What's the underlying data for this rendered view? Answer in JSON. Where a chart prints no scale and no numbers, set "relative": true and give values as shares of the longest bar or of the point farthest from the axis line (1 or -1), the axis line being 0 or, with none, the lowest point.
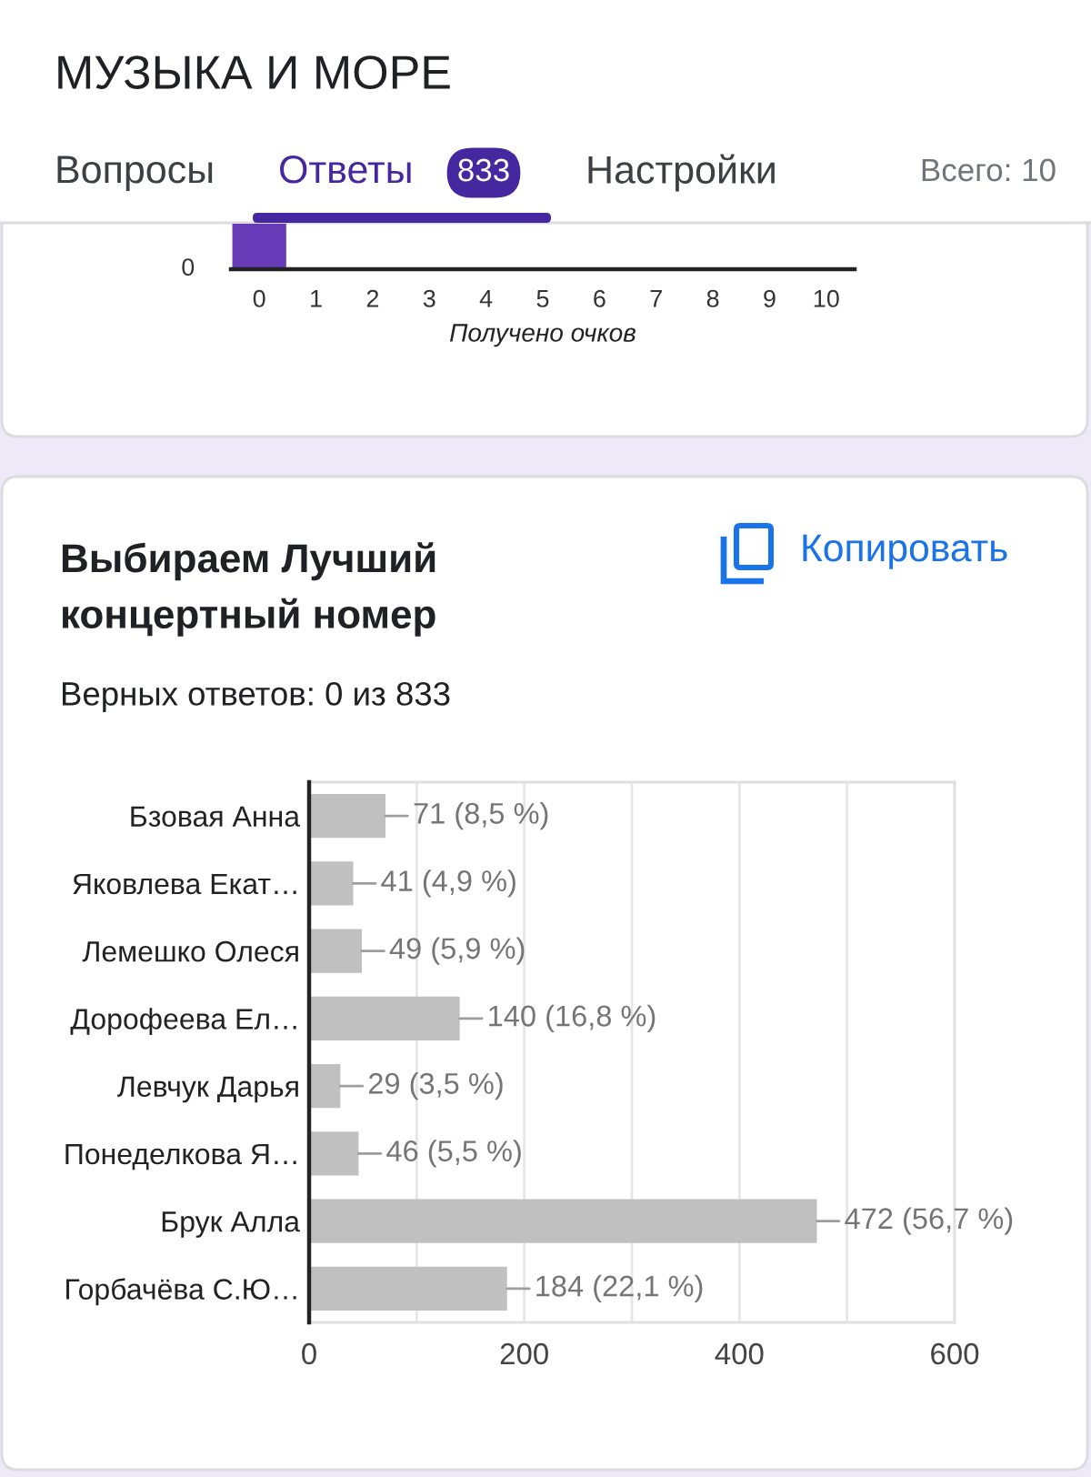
{
  "chart_data": [
    {
      "type": "other",
      "title": "МУЗЫКА И МОРЕ",
      "annotations": [
        "Вопросы",
        "Ответы",
        "833",
        "Настройки",
        "Всего: 10"
      ]
    },
    {
      "type": "bar",
      "x": [
        0
      ],
      "values": [
        1
      ],
      "relative": true,
      "color": "#673ab7",
      "xlim": [
        -0.5,
        10.5
      ],
      "xticks": [
        0,
        1,
        2,
        3,
        4,
        5,
        6,
        7,
        8,
        9,
        10
      ],
      "annotations": [
        "0"
      ],
      "xlabel": "Получено очков"
    },
    {
      "type": "bar",
      "orientation": "horizontal",
      "title": "Выбираем Лучший концертный номер",
      "subtitle": "Верных ответов: 0 из 833",
      "annotations": [
        "Копировать"
      ],
      "categories": [
        "Бзовая Анна",
        "Яковлева Екат…",
        "Лемешко Олеся",
        "Дорофеева Ел…",
        "Левчук Дарья",
        "Понеделкова Я…",
        "Брук Алла",
        "Горбачёва С.Ю…"
      ],
      "values": [
        71,
        41,
        49,
        140,
        29,
        46,
        472,
        184
      ],
      "value_labels": [
        "71 (8,5 %)",
        "41 (4,9 %)",
        "49 (5,9 %)",
        "140 (16,8 %)",
        "29 (3,5 %)",
        "46 (5,5 %)",
        "472 (56,7 %)",
        "184 (22,1 %)"
      ],
      "color": "#c0c0c0",
      "xlim": [
        0,
        600
      ],
      "xticks": [
        0,
        {
          "value": 100,
          "label": null
        },
        200,
        {
          "value": 300,
          "label": null
        },
        400,
        {
          "value": 500,
          "label": null
        },
        600
      ],
      "grid": "x"
    }
  ]
}
